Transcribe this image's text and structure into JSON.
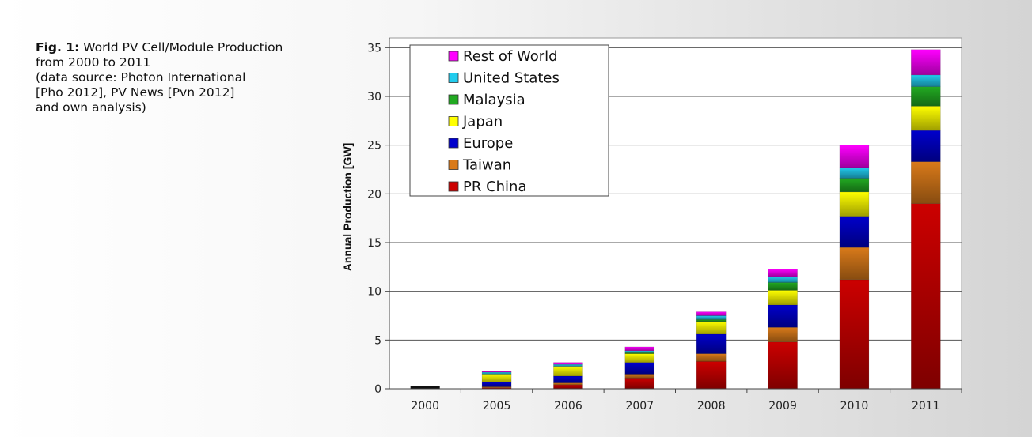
{
  "caption": {
    "fig_label": "Fig. 1:",
    "line1": "World PV Cell/Module Production",
    "line2": "from 2000 to 2011",
    "line3": "(data source: Photon International",
    "line4": "[Pho 2012], PV News [Pvn 2012]",
    "line5": "and own analysis)"
  },
  "chart_data": {
    "type": "bar",
    "stacked": true,
    "title": "",
    "xlabel": "",
    "ylabel": "Annual Production [GW]",
    "ylim": [
      0,
      36
    ],
    "yticks": [
      0,
      5,
      10,
      15,
      20,
      25,
      30,
      35
    ],
    "grid": true,
    "legend_position": "top-left",
    "categories": [
      "2000",
      "2005",
      "2006",
      "2007",
      "2008",
      "2009",
      "2010",
      "2011"
    ],
    "total_2000": 0.3,
    "series": [
      {
        "name": "PR China",
        "color": "#cc0000",
        "values": [
          0,
          0.1,
          0.4,
          1.1,
          2.8,
          4.8,
          11.2,
          19.0
        ]
      },
      {
        "name": "Taiwan",
        "color": "#d97a1a",
        "values": [
          0,
          0.1,
          0.2,
          0.4,
          0.8,
          1.5,
          3.3,
          4.3
        ]
      },
      {
        "name": "Europe",
        "color": "#0000cc",
        "values": [
          0,
          0.5,
          0.7,
          1.2,
          2.0,
          2.3,
          3.2,
          3.2
        ]
      },
      {
        "name": "Japan",
        "color": "#ffff00",
        "values": [
          0,
          0.8,
          1.0,
          0.9,
          1.3,
          1.5,
          2.5,
          2.5
        ]
      },
      {
        "name": "Malaysia",
        "color": "#22aa22",
        "values": [
          0,
          0,
          0,
          0.1,
          0.2,
          0.8,
          1.4,
          2.0
        ]
      },
      {
        "name": "United States",
        "color": "#22ccee",
        "values": [
          0,
          0.2,
          0.2,
          0.2,
          0.4,
          0.6,
          1.1,
          1.2
        ]
      },
      {
        "name": "Rest of World",
        "color": "#ff00ff",
        "values": [
          0,
          0.1,
          0.2,
          0.4,
          0.4,
          0.8,
          2.3,
          2.6
        ]
      }
    ],
    "legend_order": [
      "Rest of World",
      "United States",
      "Malaysia",
      "Japan",
      "Europe",
      "Taiwan",
      "PR China"
    ]
  }
}
